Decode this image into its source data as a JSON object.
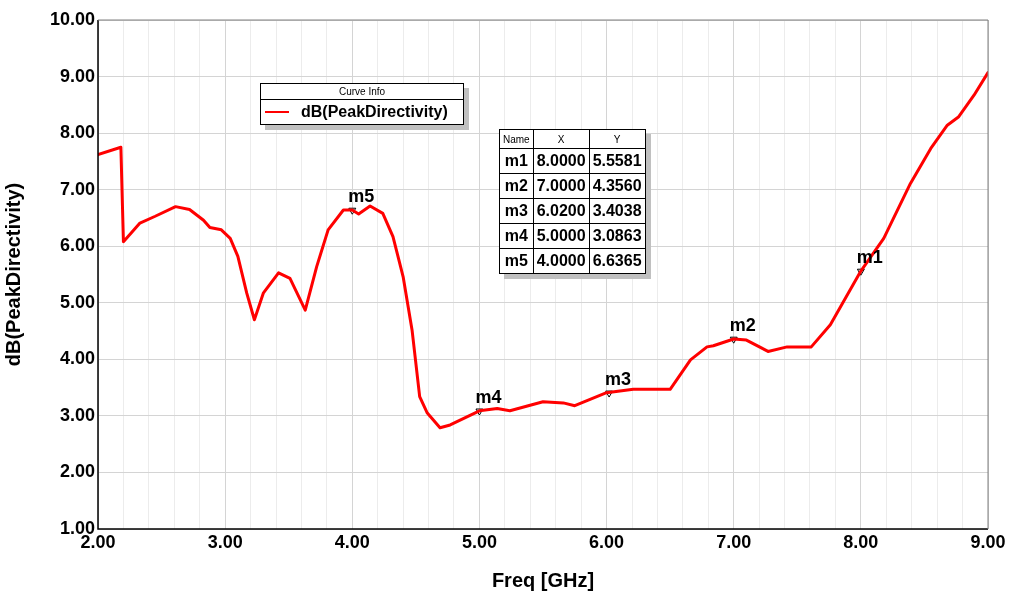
{
  "chart_data": {
    "type": "line",
    "xlabel": "Freq [GHz]",
    "ylabel": "dB(PeakDirectivity)",
    "legend_title": "Curve Info",
    "legend": "top left",
    "grid": true,
    "marker": "none",
    "line_style": "solid",
    "xlim": [
      2,
      9
    ],
    "ylim": [
      1,
      10
    ],
    "xticks": [
      {
        "value": 2,
        "label": "2.00"
      },
      {
        "value": 2.2,
        "label": null
      },
      {
        "value": 2.4,
        "label": null
      },
      {
        "value": 2.6,
        "label": null
      },
      {
        "value": 2.8,
        "label": null
      },
      {
        "value": 3,
        "label": "3.00"
      },
      {
        "value": 3.2,
        "label": null
      },
      {
        "value": 3.4,
        "label": null
      },
      {
        "value": 3.6,
        "label": null
      },
      {
        "value": 3.8,
        "label": null
      },
      {
        "value": 4,
        "label": "4.00"
      },
      {
        "value": 4.2,
        "label": null
      },
      {
        "value": 4.4,
        "label": null
      },
      {
        "value": 4.6,
        "label": null
      },
      {
        "value": 4.8,
        "label": null
      },
      {
        "value": 5,
        "label": "5.00"
      },
      {
        "value": 5.2,
        "label": null
      },
      {
        "value": 5.4,
        "label": null
      },
      {
        "value": 5.6,
        "label": null
      },
      {
        "value": 5.8,
        "label": null
      },
      {
        "value": 6,
        "label": "6.00"
      },
      {
        "value": 6.2,
        "label": null
      },
      {
        "value": 6.4,
        "label": null
      },
      {
        "value": 6.6,
        "label": null
      },
      {
        "value": 6.8,
        "label": null
      },
      {
        "value": 7,
        "label": "7.00"
      },
      {
        "value": 7.2,
        "label": null
      },
      {
        "value": 7.4,
        "label": null
      },
      {
        "value": 7.6,
        "label": null
      },
      {
        "value": 7.8,
        "label": null
      },
      {
        "value": 8,
        "label": "8.00"
      },
      {
        "value": 8.2,
        "label": null
      },
      {
        "value": 8.4,
        "label": null
      },
      {
        "value": 8.6,
        "label": null
      },
      {
        "value": 8.8,
        "label": null
      },
      {
        "value": 9,
        "label": "9.00"
      }
    ],
    "yticks": [
      {
        "value": 1,
        "label": "1.00"
      },
      {
        "value": 2,
        "label": "2.00"
      },
      {
        "value": 3,
        "label": "3.00"
      },
      {
        "value": 4,
        "label": "4.00"
      },
      {
        "value": 5,
        "label": "5.00"
      },
      {
        "value": 6,
        "label": "6.00"
      },
      {
        "value": 7,
        "label": "7.00"
      },
      {
        "value": 8,
        "label": "8.00"
      },
      {
        "value": 9,
        "label": "9.00"
      },
      {
        "value": 10,
        "label": "10.00"
      }
    ],
    "series": [
      {
        "name": "dB(PeakDirectivity)",
        "type": "line",
        "color": "#ff0000",
        "x": [
          2.0,
          2.18,
          2.2,
          2.33,
          2.45,
          2.61,
          2.72,
          2.83,
          2.88,
          2.97,
          3.04,
          3.1,
          3.17,
          3.23,
          3.3,
          3.42,
          3.51,
          3.63,
          3.72,
          3.81,
          3.93,
          4.0,
          4.05,
          4.14,
          4.24,
          4.32,
          4.4,
          4.47,
          4.53,
          4.59,
          4.69,
          4.77,
          5.0,
          5.14,
          5.24,
          5.5,
          5.66,
          5.75,
          6.0,
          6.21,
          6.5,
          6.66,
          6.79,
          6.84,
          7.0,
          7.1,
          7.27,
          7.42,
          7.61,
          7.76,
          8.0,
          8.18,
          8.39,
          8.55,
          8.68,
          8.77,
          8.89,
          9.0
        ],
        "values": [
          7.62,
          7.75,
          6.08,
          6.41,
          6.53,
          6.7,
          6.65,
          6.46,
          6.33,
          6.29,
          6.14,
          5.82,
          5.17,
          4.7,
          5.17,
          5.53,
          5.43,
          4.87,
          5.64,
          6.29,
          6.64,
          6.64,
          6.57,
          6.71,
          6.58,
          6.17,
          5.46,
          4.52,
          3.34,
          3.05,
          2.79,
          2.84,
          3.09,
          3.13,
          3.09,
          3.25,
          3.23,
          3.18,
          3.41,
          3.47,
          3.47,
          3.99,
          4.22,
          4.24,
          4.36,
          4.34,
          4.14,
          4.22,
          4.22,
          4.61,
          5.56,
          6.14,
          7.11,
          7.73,
          8.14,
          8.29,
          8.67,
          9.07
        ]
      },
      {
        "type": "scatter",
        "marker": "triangle",
        "color": "#000000",
        "x": [
          8.0,
          7.0,
          6.02,
          5.0,
          4.0
        ],
        "values": [
          5.5581,
          4.356,
          3.4038,
          3.0863,
          6.6365
        ],
        "value_labels": [
          "m1",
          "m2",
          "m3",
          "m4",
          "m5"
        ]
      }
    ],
    "annotations": [
      "Name",
      "X",
      "Y",
      "m1",
      "8.0000",
      "5.5581",
      "m2",
      "7.0000",
      "4.3560",
      "m3",
      "6.0200",
      "3.4038",
      "m4",
      "5.0000",
      "3.0863",
      "m5",
      "4.0000",
      "6.6365"
    ]
  }
}
